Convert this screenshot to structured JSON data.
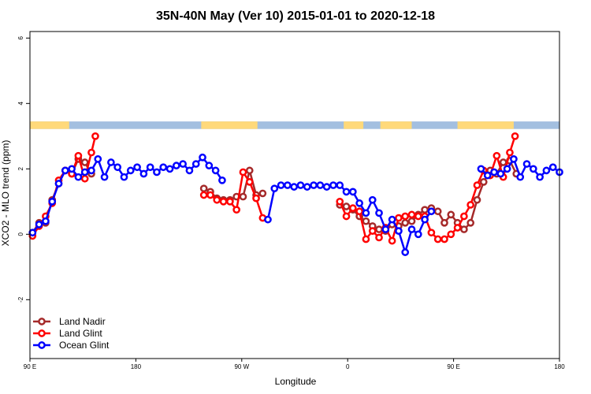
{
  "chart_data": {
    "type": "line",
    "title": "35N-40N May (Ver 10)   2015-01-01 to 2020-12-18",
    "xlabel": "Longitude",
    "ylabel": "XCO2 - MLO trend (ppm)",
    "xlim": [
      0,
      405
    ],
    "ylim": [
      -3.8,
      6.2
    ],
    "xticks": [
      {
        "value": 0,
        "label": "90 E"
      },
      {
        "value": 81,
        "label": "180"
      },
      {
        "value": 162,
        "label": "90 W"
      },
      {
        "value": 243,
        "label": "0"
      },
      {
        "value": 324,
        "label": "90 E"
      },
      {
        "value": 405,
        "label": "180"
      }
    ],
    "yticks": [
      {
        "value": -2,
        "label": "-2"
      },
      {
        "value": 0,
        "label": "0"
      },
      {
        "value": 2,
        "label": "2"
      },
      {
        "value": 4,
        "label": "4"
      },
      {
        "value": 6,
        "label": "6"
      }
    ],
    "legend_position": "bottom-left",
    "surface_band": {
      "y_range": [
        3.22,
        3.45
      ],
      "ocean_color": "#a3bfe0",
      "land_color": "#ffd97a",
      "land_segments": [
        [
          0,
          30
        ],
        [
          131,
          174
        ],
        [
          240,
          255
        ],
        [
          268,
          292
        ],
        [
          327,
          370
        ],
        [
          405,
          405
        ]
      ]
    },
    "series": [
      {
        "name": "Land Nadir",
        "color": "#a52a2a",
        "points": [
          [
            2,
            0.05
          ],
          [
            7,
            0.35
          ],
          [
            12,
            0.35
          ],
          [
            17,
            1.05
          ],
          [
            22,
            1.55
          ],
          [
            27,
            1.95
          ],
          [
            32,
            1.85
          ],
          [
            37,
            2.3
          ],
          [
            42,
            2.2
          ],
          [
            47,
            1.85
          ],
          [
            133,
            1.4
          ],
          [
            138,
            1.3
          ],
          [
            143,
            1.1
          ],
          [
            148,
            1.05
          ],
          [
            153,
            1.05
          ],
          [
            158,
            1.15
          ],
          [
            163,
            1.15
          ],
          [
            168,
            1.95
          ],
          [
            173,
            1.2
          ],
          [
            178,
            1.25
          ],
          [
            237,
            0.9
          ],
          [
            242,
            0.85
          ],
          [
            247,
            0.75
          ],
          [
            252,
            0.55
          ],
          [
            257,
            0.4
          ],
          [
            262,
            0.25
          ],
          [
            267,
            0.15
          ],
          [
            272,
            0.1
          ],
          [
            277,
            0.3
          ],
          [
            282,
            0.25
          ],
          [
            287,
            0.35
          ],
          [
            292,
            0.4
          ],
          [
            297,
            0.6
          ],
          [
            302,
            0.75
          ],
          [
            307,
            0.8
          ],
          [
            312,
            0.7
          ],
          [
            317,
            0.35
          ],
          [
            322,
            0.6
          ],
          [
            327,
            0.35
          ],
          [
            332,
            0.15
          ],
          [
            337,
            0.35
          ],
          [
            342,
            1.05
          ],
          [
            347,
            1.6
          ],
          [
            352,
            1.95
          ],
          [
            357,
            1.85
          ],
          [
            362,
            2.2
          ],
          [
            367,
            2.25
          ],
          [
            372,
            1.85
          ]
        ]
      },
      {
        "name": "Land Glint",
        "color": "#ff0000",
        "points": [
          [
            2,
            -0.05
          ],
          [
            7,
            0.25
          ],
          [
            12,
            0.55
          ],
          [
            17,
            0.95
          ],
          [
            22,
            1.65
          ],
          [
            27,
            1.95
          ],
          [
            32,
            1.85
          ],
          [
            37,
            2.4
          ],
          [
            42,
            1.7
          ],
          [
            47,
            2.5
          ],
          [
            50,
            3.0
          ],
          [
            133,
            1.2
          ],
          [
            138,
            1.2
          ],
          [
            143,
            1.05
          ],
          [
            148,
            1.0
          ],
          [
            153,
            1.0
          ],
          [
            158,
            0.75
          ],
          [
            163,
            1.9
          ],
          [
            168,
            1.6
          ],
          [
            173,
            1.1
          ],
          [
            178,
            0.5
          ],
          [
            237,
            1.0
          ],
          [
            242,
            0.55
          ],
          [
            247,
            0.8
          ],
          [
            252,
            0.7
          ],
          [
            257,
            -0.15
          ],
          [
            262,
            0.1
          ],
          [
            267,
            -0.1
          ],
          [
            272,
            0.2
          ],
          [
            277,
            -0.2
          ],
          [
            282,
            0.5
          ],
          [
            287,
            0.55
          ],
          [
            292,
            0.6
          ],
          [
            297,
            0.55
          ],
          [
            302,
            0.55
          ],
          [
            307,
            0.05
          ],
          [
            312,
            -0.15
          ],
          [
            317,
            -0.15
          ],
          [
            322,
            0.0
          ],
          [
            327,
            0.2
          ],
          [
            332,
            0.55
          ],
          [
            337,
            0.9
          ],
          [
            342,
            1.5
          ],
          [
            347,
            1.95
          ],
          [
            352,
            1.8
          ],
          [
            357,
            2.4
          ],
          [
            362,
            1.75
          ],
          [
            367,
            2.5
          ],
          [
            371,
            3.0
          ]
        ]
      },
      {
        "name": "Ocean Glint",
        "color": "#0000ff",
        "points": [
          [
            2,
            0.05
          ],
          [
            7,
            0.3
          ],
          [
            12,
            0.4
          ],
          [
            17,
            1.0
          ],
          [
            22,
            1.55
          ],
          [
            27,
            1.95
          ],
          [
            32,
            2.0
          ],
          [
            37,
            1.75
          ],
          [
            42,
            1.9
          ],
          [
            47,
            1.95
          ],
          [
            52,
            2.3
          ],
          [
            57,
            1.75
          ],
          [
            62,
            2.2
          ],
          [
            67,
            2.05
          ],
          [
            72,
            1.75
          ],
          [
            77,
            1.95
          ],
          [
            82,
            2.05
          ],
          [
            87,
            1.85
          ],
          [
            92,
            2.05
          ],
          [
            97,
            1.9
          ],
          [
            102,
            2.05
          ],
          [
            107,
            2.0
          ],
          [
            112,
            2.1
          ],
          [
            117,
            2.15
          ],
          [
            122,
            1.95
          ],
          [
            127,
            2.15
          ],
          [
            132,
            2.35
          ],
          [
            137,
            2.1
          ],
          [
            142,
            1.95
          ],
          [
            147,
            1.65
          ],
          [
            182,
            0.45
          ],
          [
            187,
            1.4
          ],
          [
            192,
            1.5
          ],
          [
            197,
            1.5
          ],
          [
            202,
            1.45
          ],
          [
            207,
            1.5
          ],
          [
            212,
            1.45
          ],
          [
            217,
            1.5
          ],
          [
            222,
            1.5
          ],
          [
            227,
            1.45
          ],
          [
            232,
            1.5
          ],
          [
            237,
            1.5
          ],
          [
            242,
            1.3
          ],
          [
            247,
            1.3
          ],
          [
            252,
            0.95
          ],
          [
            257,
            0.65
          ],
          [
            262,
            1.05
          ],
          [
            267,
            0.65
          ],
          [
            272,
            0.15
          ],
          [
            277,
            0.45
          ],
          [
            282,
            0.1
          ],
          [
            287,
            -0.55
          ],
          [
            292,
            0.15
          ],
          [
            297,
            0.0
          ],
          [
            302,
            0.45
          ],
          [
            307,
            0.7
          ],
          [
            345,
            2.0
          ],
          [
            350,
            1.8
          ],
          [
            355,
            1.9
          ],
          [
            360,
            1.85
          ],
          [
            365,
            2.0
          ],
          [
            370,
            2.3
          ],
          [
            375,
            1.75
          ],
          [
            380,
            2.15
          ],
          [
            385,
            2.0
          ],
          [
            390,
            1.75
          ],
          [
            395,
            1.95
          ],
          [
            400,
            2.05
          ],
          [
            405,
            1.9
          ]
        ]
      }
    ]
  }
}
